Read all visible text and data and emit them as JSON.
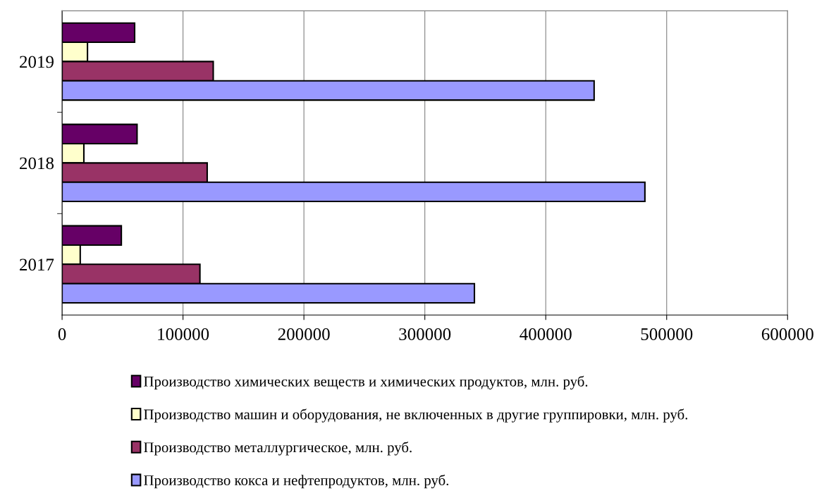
{
  "chart_data": {
    "type": "bar",
    "orientation": "horizontal",
    "categories": [
      "2019",
      "2018",
      "2017"
    ],
    "series": [
      {
        "name": "Производство химических веществ и химических продуктов, млн. руб.",
        "color": "#660066",
        "values": [
          60000,
          62000,
          49000
        ]
      },
      {
        "name": "Производство машин и оборудования, не включенных в другие группировки, млн. руб.",
        "color": "#ffffcc",
        "values": [
          21000,
          18000,
          15000
        ]
      },
      {
        "name": "Производство металлургическое, млн. руб.",
        "color": "#993366",
        "values": [
          125000,
          120000,
          114000
        ]
      },
      {
        "name": "Производство кокса и нефтепродуктов, млн. руб.",
        "color": "#9999ff",
        "values": [
          440000,
          482000,
          341000
        ]
      }
    ],
    "xlim": [
      0,
      600000
    ],
    "xticks": [
      0,
      100000,
      200000,
      300000,
      400000,
      500000,
      600000
    ],
    "grid": "x",
    "legend": "bottom"
  }
}
